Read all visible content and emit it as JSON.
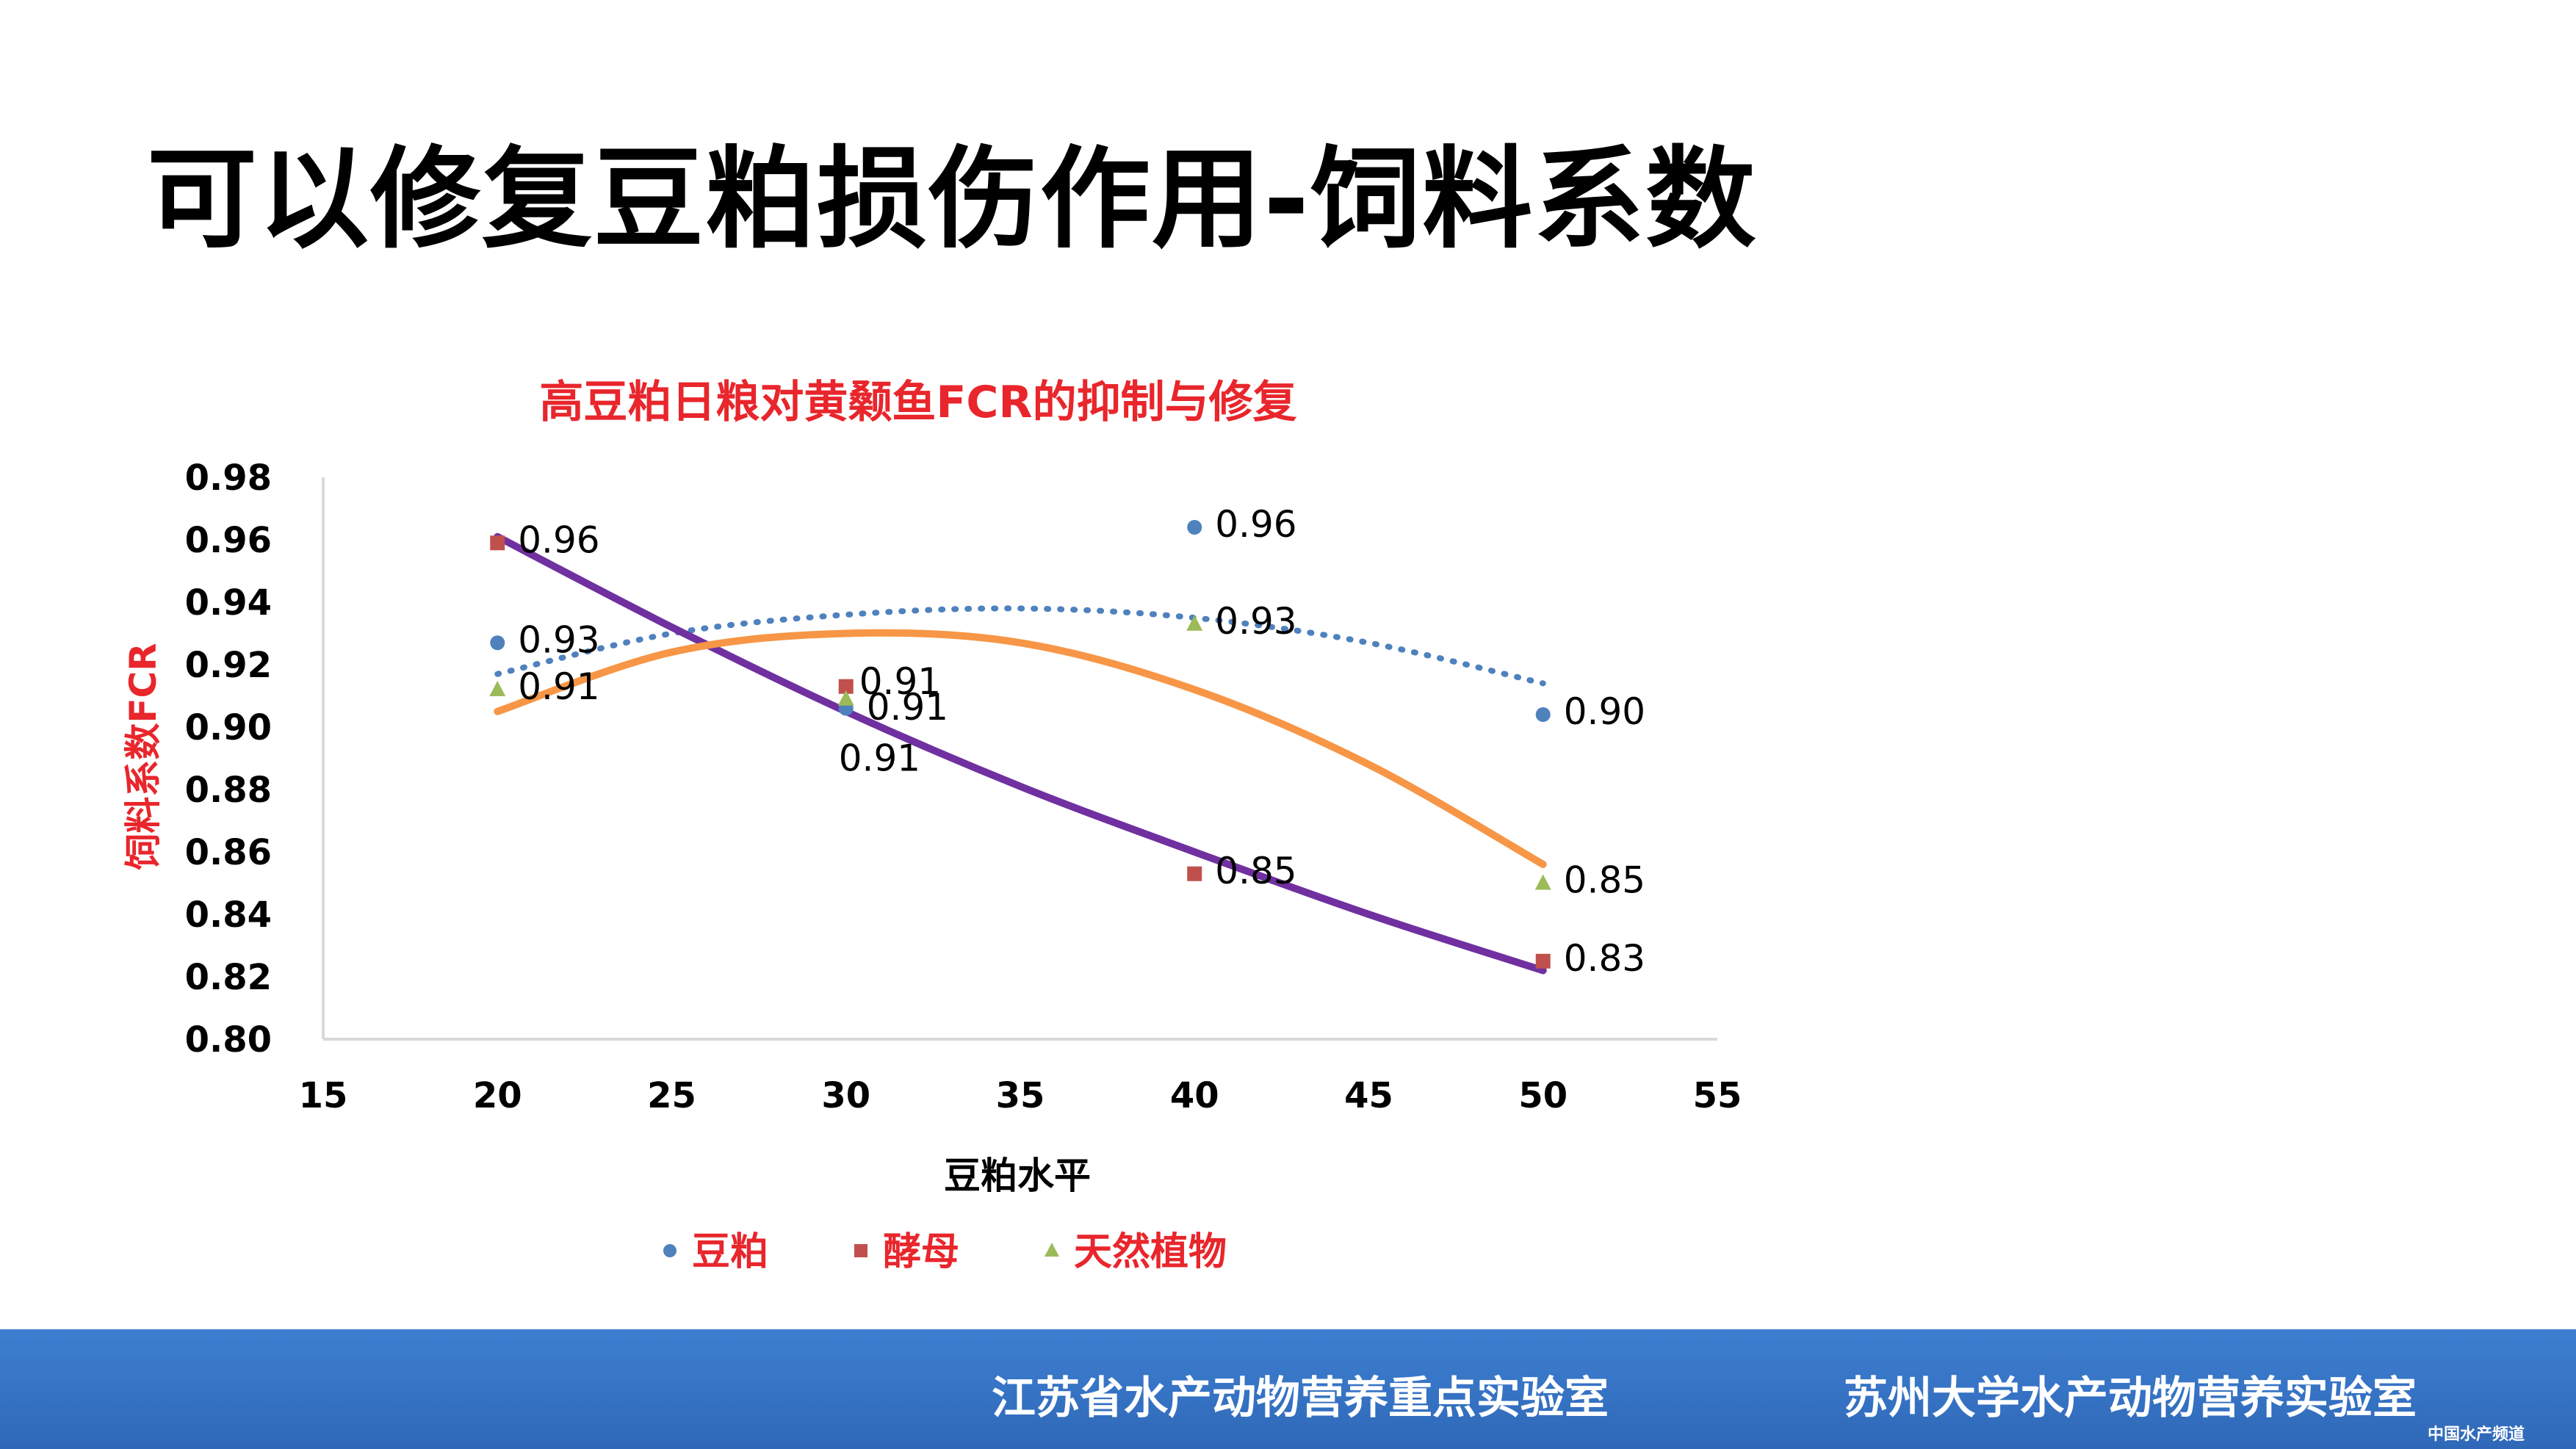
{
  "slide": {
    "title": "可以修复豆粕损伤作用-饲料系数",
    "footer_left": "江苏省水产动物营养重点实验室",
    "footer_right": "苏州大学水产动物营养实验室",
    "watermark": "中国水产频道"
  },
  "chart_data": {
    "type": "scatter",
    "title": "高豆粕日粮对黄颡鱼FCR的抑制与修复",
    "xlabel": "豆粕水平",
    "ylabel": "饲料系数FCR",
    "xlim": [
      15,
      55
    ],
    "ylim": [
      0.8,
      0.98
    ],
    "x_ticks": [
      "15",
      "20",
      "25",
      "30",
      "35",
      "40",
      "45",
      "50",
      "55"
    ],
    "y_ticks": [
      "0.80",
      "0.82",
      "0.84",
      "0.86",
      "0.88",
      "0.90",
      "0.92",
      "0.94",
      "0.96",
      "0.98"
    ],
    "grid": false,
    "legend_position": "bottom",
    "series": [
      {
        "name": "豆粕",
        "marker": "circle",
        "color": "#4f81bd",
        "trendline": "dotted",
        "trend_color": "#4f81bd",
        "points": [
          {
            "x": 20,
            "y": 0.927,
            "label": "0.93"
          },
          {
            "x": 30,
            "y": 0.906,
            "label": "0.91"
          },
          {
            "x": 40,
            "y": 0.964,
            "label": "0.96"
          },
          {
            "x": 50,
            "y": 0.904,
            "label": "0.90"
          }
        ],
        "trend": [
          [
            20,
            0.917
          ],
          [
            25,
            0.93
          ],
          [
            30,
            0.936
          ],
          [
            35,
            0.938
          ],
          [
            40,
            0.935
          ],
          [
            45,
            0.927
          ],
          [
            50,
            0.914
          ]
        ]
      },
      {
        "name": "酵母",
        "marker": "square",
        "color": "#c0504d",
        "trendline": "solid",
        "trend_color": "#7030a0",
        "points": [
          {
            "x": 20,
            "y": 0.959,
            "label": "0.96"
          },
          {
            "x": 30,
            "y": 0.913,
            "label": "0.91"
          },
          {
            "x": 40,
            "y": 0.853,
            "label": "0.85"
          },
          {
            "x": 50,
            "y": 0.825,
            "label": "0.83"
          }
        ],
        "trend": [
          [
            20,
            0.961
          ],
          [
            25,
            0.932
          ],
          [
            30,
            0.905
          ],
          [
            35,
            0.881
          ],
          [
            40,
            0.86
          ],
          [
            45,
            0.84
          ],
          [
            50,
            0.822
          ]
        ]
      },
      {
        "name": "天然植物",
        "marker": "triangle",
        "color": "#9bbb59",
        "trendline": "solid",
        "trend_color": "#f79646",
        "points": [
          {
            "x": 20,
            "y": 0.912,
            "label": "0.91"
          },
          {
            "x": 30,
            "y": 0.909,
            "label": "0.91"
          },
          {
            "x": 40,
            "y": 0.933,
            "label": "0.93"
          },
          {
            "x": 50,
            "y": 0.85,
            "label": "0.85"
          }
        ],
        "trend": [
          [
            20,
            0.905
          ],
          [
            25,
            0.924
          ],
          [
            30,
            0.93
          ],
          [
            35,
            0.927
          ],
          [
            40,
            0.912
          ],
          [
            45,
            0.888
          ],
          [
            50,
            0.856
          ]
        ]
      }
    ]
  }
}
